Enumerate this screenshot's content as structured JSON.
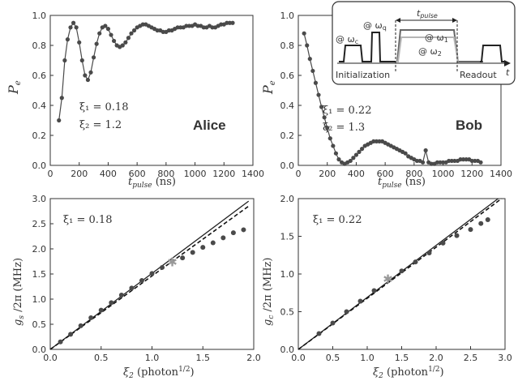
{
  "panels": [
    {
      "id": "alice",
      "type": "scatter",
      "xlabel": "t",
      "xlabel_sub": "pulse",
      "xlabel_unit": " (ns)",
      "ylabel": "P",
      "ylabel_sub": "e",
      "xlim": [
        0,
        1400
      ],
      "ylim": [
        0,
        1.0
      ],
      "xticks": [
        "0",
        "200",
        "400",
        "600",
        "800",
        "1000",
        "1200",
        "1400"
      ],
      "yticks": [
        "0.0",
        "0.2",
        "0.4",
        "0.6",
        "0.8",
        "1.0"
      ],
      "annotations": [
        "ξ₁ = 0.18",
        "ξ₂ = 1.2"
      ],
      "qubit_name": "Alice"
    },
    {
      "id": "bob",
      "type": "scatter",
      "xlabel": "t",
      "xlabel_sub": "pulse",
      "xlabel_unit": " (ns)",
      "ylabel": "P",
      "ylabel_sub": "e",
      "xlim": [
        0,
        1400
      ],
      "ylim": [
        0,
        1.0
      ],
      "xticks": [
        "0",
        "200",
        "400",
        "600",
        "800",
        "1000",
        "1200",
        "1400"
      ],
      "yticks": [
        "0.0",
        "0.2",
        "0.4",
        "0.6",
        "0.8",
        "1.0"
      ],
      "annotations": [
        "ξ₁ = 0.22",
        "ξ₂ = 1.3"
      ],
      "qubit_name": "Bob"
    },
    {
      "id": "gs",
      "type": "scatter",
      "xlabel": "ξ",
      "xlabel_sub": "2",
      "xlabel_unit": " (photon",
      "xlabel_sup": "1/2",
      "xlabel_close": ")",
      "ylabel": "g",
      "ylabel_sub": "s",
      "ylabel_unit": " /2π (MHz)",
      "xlim": [
        0,
        2.0
      ],
      "ylim": [
        0,
        3.0
      ],
      "xticks": [
        "0.0",
        "0.5",
        "1.0",
        "1.5",
        "2.0"
      ],
      "yticks": [
        "0.0",
        "0.5",
        "1.0",
        "1.5",
        "2.0",
        "2.5",
        "3.0"
      ],
      "annotations": [
        "ξ₁ = 0.18"
      ]
    },
    {
      "id": "gc",
      "type": "scatter",
      "xlabel": "ξ",
      "xlabel_sub": "2",
      "xlabel_unit": " (photon",
      "xlabel_sup": "1/2",
      "xlabel_close": ")",
      "ylabel": "g",
      "ylabel_sub": "c",
      "ylabel_unit": " /2π (MHz)",
      "xlim": [
        0,
        3.0
      ],
      "ylim": [
        0,
        2.0
      ],
      "xticks": [
        "0.0",
        "0.5",
        "1.0",
        "1.5",
        "2.0",
        "2.5",
        "3.0"
      ],
      "yticks": [
        "0.0",
        "0.5",
        "1.0",
        "1.5",
        "2.0"
      ],
      "annotations": [
        "ξ₁ = 0.22"
      ]
    }
  ],
  "inset": {
    "pulse_label": "t",
    "pulse_label_sub": "pulse",
    "time_axis_label": "t",
    "init_label": "Initialization",
    "readout_label": "Readout",
    "tone_labels": [
      "@ ω",
      "@ ω",
      "@ ω",
      "@ ω"
    ],
    "tone_subs": [
      "c",
      "q",
      "1",
      "2"
    ]
  },
  "colors": {
    "data": "#4a4a4a",
    "fit_solid": "#222222",
    "fit_dashed": "#111111",
    "star": "#999999",
    "inset_gray": "#aaaaaa"
  },
  "chart_data": [
    {
      "type": "scatter",
      "title": "",
      "xlabel": "t_pulse (ns)",
      "ylabel": "P_e",
      "xlim": [
        0,
        1400
      ],
      "ylim": [
        0,
        1.0
      ],
      "series": [
        {
          "x": [
            60,
            80,
            100,
            120,
            140,
            160,
            180,
            200,
            220,
            240,
            260,
            280,
            300,
            320,
            340,
            360,
            380,
            400,
            420,
            440,
            460,
            480,
            500,
            520,
            540,
            560,
            580,
            600,
            620,
            640,
            660,
            680,
            700,
            720,
            740,
            760,
            780,
            800,
            820,
            840,
            860,
            880,
            900,
            920,
            940,
            960,
            980,
            1000,
            1020,
            1040,
            1060,
            1080,
            1100,
            1120,
            1140,
            1160,
            1180,
            1200,
            1220,
            1240,
            1260
          ],
          "y": [
            0.3,
            0.45,
            0.7,
            0.84,
            0.92,
            0.95,
            0.92,
            0.82,
            0.7,
            0.6,
            0.57,
            0.62,
            0.72,
            0.81,
            0.88,
            0.92,
            0.93,
            0.91,
            0.87,
            0.83,
            0.8,
            0.79,
            0.8,
            0.82,
            0.85,
            0.88,
            0.9,
            0.92,
            0.93,
            0.94,
            0.94,
            0.93,
            0.92,
            0.91,
            0.9,
            0.9,
            0.89,
            0.89,
            0.9,
            0.9,
            0.91,
            0.92,
            0.92,
            0.92,
            0.93,
            0.93,
            0.93,
            0.94,
            0.93,
            0.93,
            0.92,
            0.92,
            0.93,
            0.92,
            0.92,
            0.93,
            0.94,
            0.94,
            0.95,
            0.95,
            0.95
          ]
        }
      ]
    },
    {
      "type": "scatter",
      "title": "",
      "xlabel": "t_pulse (ns)",
      "ylabel": "P_e",
      "xlim": [
        0,
        1400
      ],
      "ylim": [
        0,
        1.0
      ],
      "series": [
        {
          "x": [
            40,
            60,
            80,
            100,
            120,
            140,
            160,
            180,
            200,
            220,
            240,
            260,
            280,
            300,
            320,
            340,
            360,
            380,
            400,
            420,
            440,
            460,
            480,
            500,
            520,
            540,
            560,
            580,
            600,
            620,
            640,
            660,
            680,
            700,
            720,
            740,
            760,
            780,
            800,
            820,
            840,
            860,
            880,
            900,
            920,
            940,
            960,
            980,
            1000,
            1020,
            1040,
            1060,
            1080,
            1100,
            1120,
            1140,
            1160,
            1180,
            1200,
            1220,
            1240,
            1260
          ],
          "y": [
            0.88,
            0.8,
            0.71,
            0.63,
            0.55,
            0.47,
            0.39,
            0.32,
            0.25,
            0.18,
            0.13,
            0.08,
            0.04,
            0.02,
            0.01,
            0.02,
            0.03,
            0.05,
            0.07,
            0.09,
            0.11,
            0.13,
            0.14,
            0.15,
            0.16,
            0.16,
            0.16,
            0.16,
            0.15,
            0.14,
            0.13,
            0.12,
            0.11,
            0.1,
            0.09,
            0.08,
            0.06,
            0.05,
            0.04,
            0.03,
            0.03,
            0.02,
            0.1,
            0.02,
            0.01,
            0.01,
            0.02,
            0.02,
            0.02,
            0.02,
            0.03,
            0.03,
            0.03,
            0.03,
            0.04,
            0.04,
            0.04,
            0.04,
            0.03,
            0.03,
            0.03,
            0.02
          ]
        }
      ]
    },
    {
      "type": "scatter",
      "title": "",
      "xlabel": "ξ2 (photon^1/2)",
      "ylabel": "g_s /2π (MHz)",
      "xlim": [
        0,
        2.0
      ],
      "ylim": [
        0,
        3.0
      ],
      "series": [
        {
          "x": [
            0.1,
            0.2,
            0.3,
            0.4,
            0.5,
            0.6,
            0.7,
            0.8,
            0.9,
            1.0,
            1.1,
            1.3,
            1.4,
            1.5,
            1.6,
            1.7,
            1.8,
            1.9
          ],
          "y": [
            0.15,
            0.3,
            0.47,
            0.63,
            0.78,
            0.93,
            1.08,
            1.22,
            1.37,
            1.51,
            1.63,
            1.82,
            1.93,
            2.03,
            2.12,
            2.22,
            2.32,
            2.38
          ]
        },
        {
          "x": [
            0,
            1.95
          ],
          "y": [
            0,
            2.95
          ]
        },
        {
          "x": [
            0,
            1.95
          ],
          "y": [
            0,
            2.85
          ]
        },
        {
          "x": [
            1.2
          ],
          "y": [
            1.73
          ]
        }
      ]
    },
    {
      "type": "scatter",
      "title": "",
      "xlabel": "ξ2 (photon^1/2)",
      "ylabel": "g_c /2π (MHz)",
      "xlim": [
        0,
        3.0
      ],
      "ylim": [
        0,
        2.0
      ],
      "series": [
        {
          "x": [
            0.3,
            0.5,
            0.7,
            0.9,
            1.1,
            1.5,
            1.7,
            1.9,
            2.1,
            2.3,
            2.5,
            2.65,
            2.75
          ],
          "y": [
            0.21,
            0.35,
            0.5,
            0.64,
            0.78,
            1.04,
            1.16,
            1.28,
            1.41,
            1.51,
            1.59,
            1.67,
            1.72
          ]
        },
        {
          "x": [
            0,
            2.9
          ],
          "y": [
            0,
            2.0
          ]
        },
        {
          "x": [
            0,
            2.95
          ],
          "y": [
            0,
            2.0
          ]
        },
        {
          "x": [
            1.3
          ],
          "y": [
            0.93
          ]
        }
      ]
    }
  ]
}
